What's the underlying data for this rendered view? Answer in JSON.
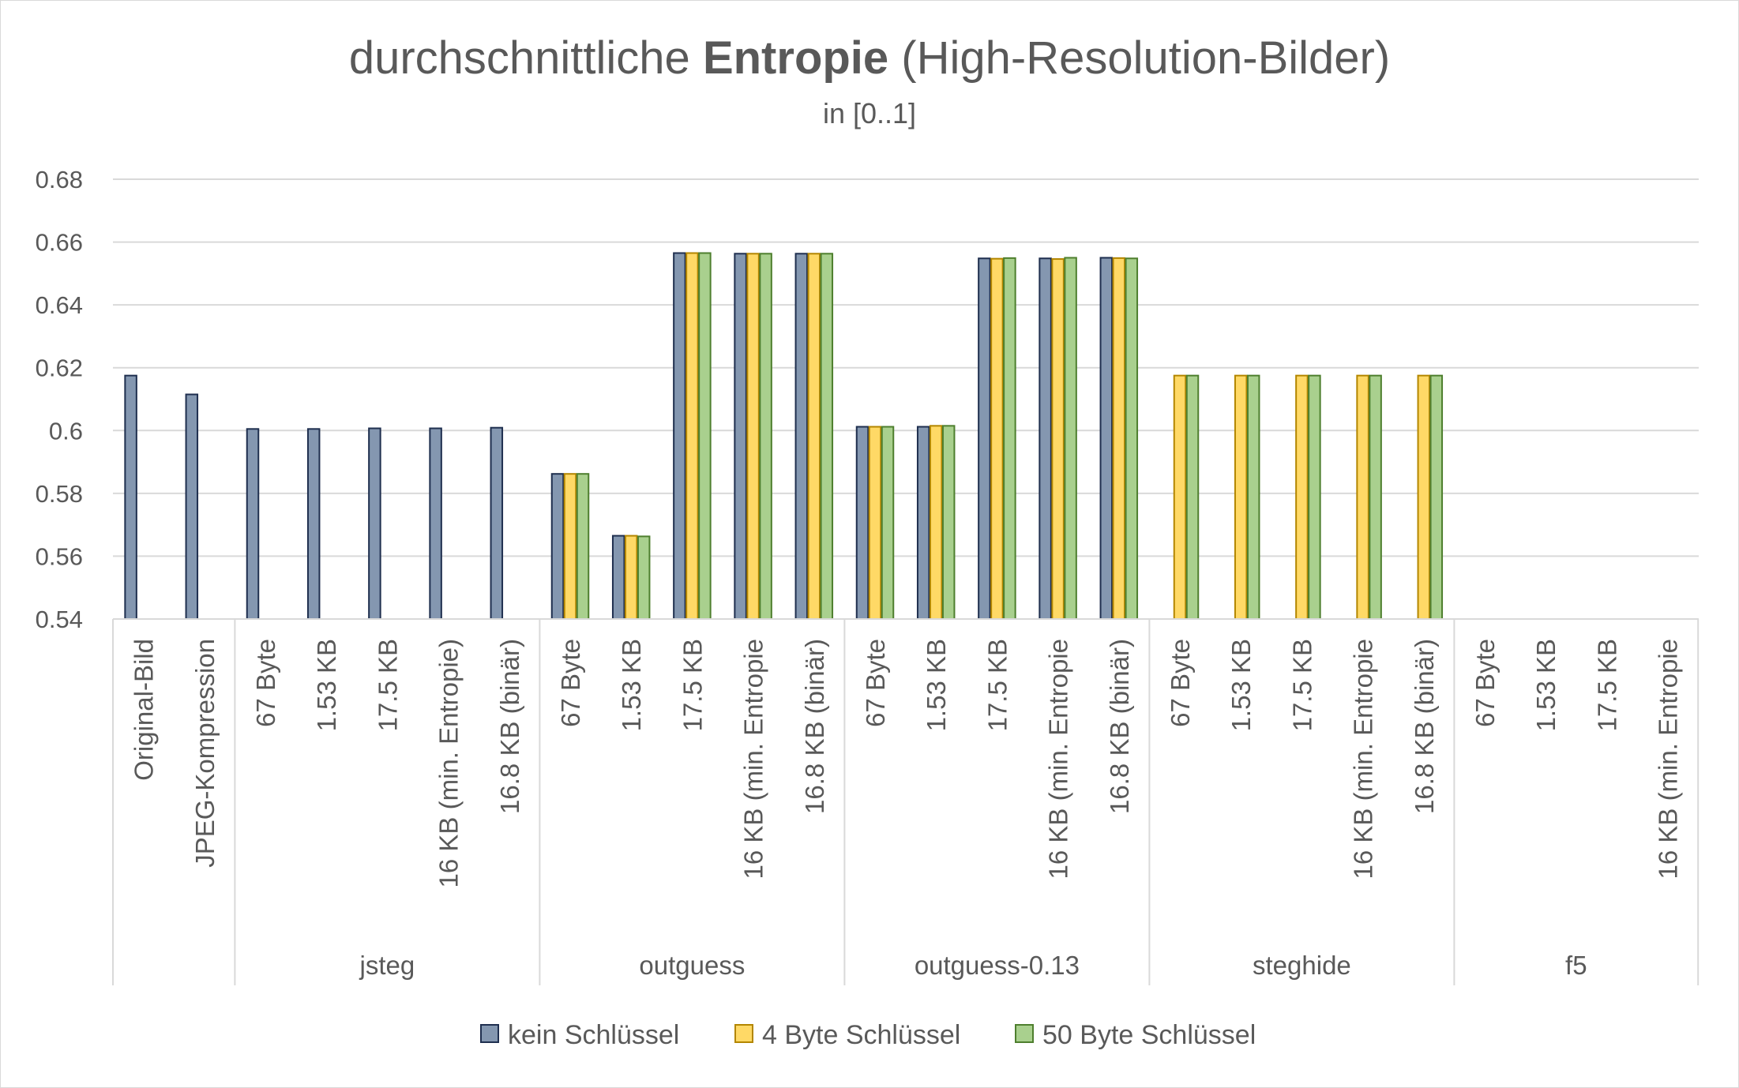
{
  "chart_data": {
    "type": "bar",
    "title": {
      "prefix": "durchschnittliche ",
      "bold": "Entropie",
      "suffix": " (High-Resolution-Bilder)"
    },
    "subtitle": "in [0..1]",
    "ylim": [
      0.54,
      0.68
    ],
    "yticks": [
      "0.54",
      "0.56",
      "0.58",
      "0.6",
      "0.62",
      "0.64",
      "0.66",
      "0.68"
    ],
    "grid": true,
    "legend_position": "bottom",
    "groups": [
      {
        "name": "",
        "categories": [
          "Original-Bild",
          "JPEG-Kompression"
        ]
      },
      {
        "name": "jsteg",
        "categories": [
          "67 Byte",
          "1.53 KB",
          "17.5 KB",
          "16 KB (min. Entropie)",
          "16.8 KB (binär)"
        ]
      },
      {
        "name": "outguess",
        "categories": [
          "67 Byte",
          "1.53 KB",
          "17.5 KB",
          "16 KB (min. Entropie",
          "16.8 KB (binär)"
        ]
      },
      {
        "name": "outguess-0.13",
        "categories": [
          "67 Byte",
          "1.53 KB",
          "17.5 KB",
          "16 KB (min. Entropie",
          "16.8 KB (binär)"
        ]
      },
      {
        "name": "steghide",
        "categories": [
          "67 Byte",
          "1.53 KB",
          "17.5 KB",
          "16 KB (min. Entropie",
          "16.8 KB (binär)"
        ]
      },
      {
        "name": "f5",
        "categories": [
          "67 Byte",
          "1.53 KB",
          "17.5 KB",
          "16 KB (min. Entropie"
        ]
      }
    ],
    "series": [
      {
        "name": "kein Schlüssel",
        "color": "#8497b0",
        "border": "#1f2f4f",
        "values": [
          0.6175,
          0.6115,
          0.6005,
          0.6005,
          0.6007,
          0.6007,
          0.6009,
          0.5862,
          0.5665,
          0.6565,
          0.6563,
          0.6563,
          0.6012,
          0.6012,
          0.6548,
          0.6548,
          0.655,
          null,
          null,
          null,
          null,
          null,
          null,
          null,
          null,
          null
        ]
      },
      {
        "name": "4 Byte Schlüssel",
        "color": "#ffd966",
        "border": "#b38600",
        "values": [
          null,
          null,
          null,
          null,
          null,
          null,
          null,
          0.5862,
          0.5665,
          0.6565,
          0.6563,
          0.6563,
          0.6012,
          0.6015,
          0.6547,
          0.6546,
          0.6549,
          0.6175,
          0.6175,
          0.6175,
          0.6175,
          0.6175,
          null,
          null,
          null,
          null
        ]
      },
      {
        "name": "50 Byte Schlüssel",
        "color": "#a9d08e",
        "border": "#4e7f2e",
        "values": [
          null,
          null,
          null,
          null,
          null,
          null,
          null,
          0.5862,
          0.5663,
          0.6565,
          0.6563,
          0.6563,
          0.6012,
          0.6015,
          0.6549,
          0.655,
          0.6548,
          0.6175,
          0.6175,
          0.6175,
          0.6175,
          0.6175,
          null,
          null,
          null,
          null
        ]
      }
    ]
  }
}
